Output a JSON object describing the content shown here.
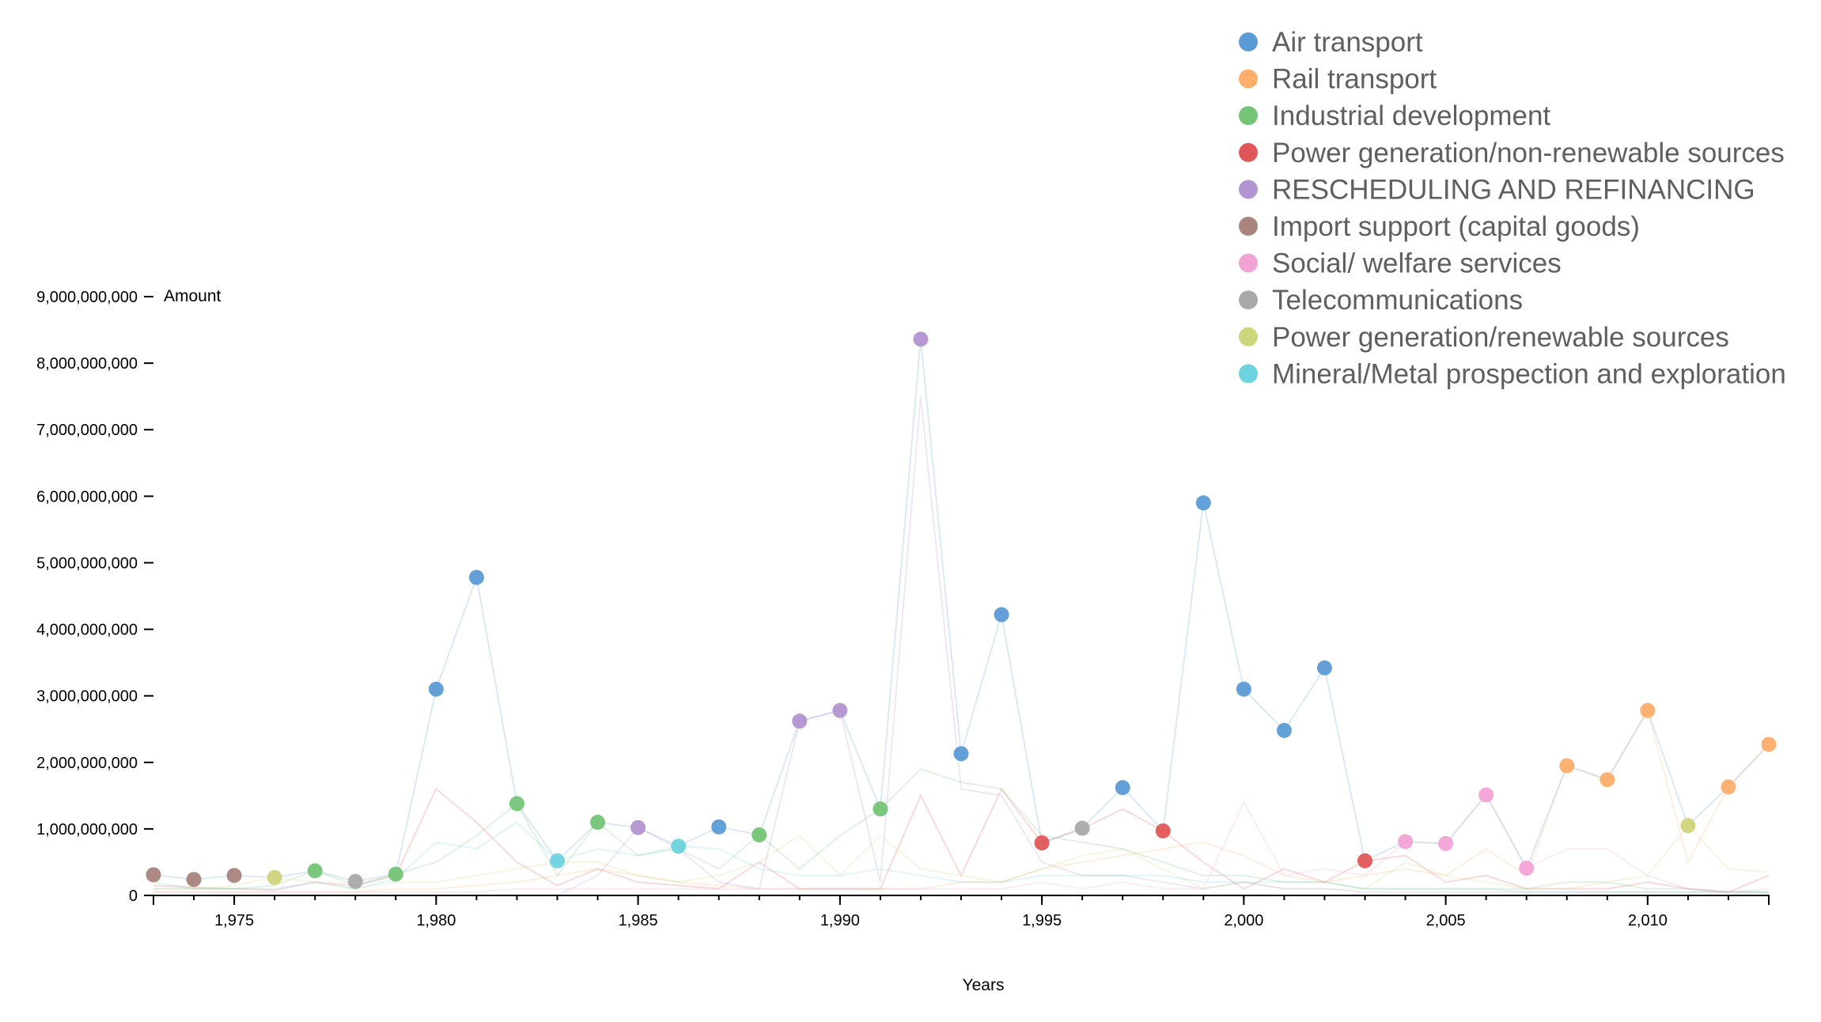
{
  "chart_data": {
    "type": "scatter",
    "xlabel": "Years",
    "ylabel": "Amount",
    "xlim": [
      1973,
      2013
    ],
    "ylim": [
      0,
      9000000000
    ],
    "x_ticks": [
      1975,
      1980,
      1985,
      1990,
      1995,
      2000,
      2005,
      2010
    ],
    "x_tick_labels": [
      "1,975",
      "1,980",
      "1,985",
      "1,990",
      "1,995",
      "2,000",
      "2,005",
      "2,010"
    ],
    "y_ticks": [
      0,
      1000000000,
      2000000000,
      3000000000,
      4000000000,
      5000000000,
      6000000000,
      7000000000,
      8000000000,
      9000000000
    ],
    "y_tick_labels": [
      "0",
      "1,000,000,000",
      "2,000,000,000",
      "3,000,000,000",
      "4,000,000,000",
      "5,000,000,000",
      "6,000,000,000",
      "7,000,000,000",
      "8,000,000,000",
      "9,000,000,000"
    ],
    "legend_position": "top-right",
    "grid": false,
    "series": [
      {
        "name": "Air transport",
        "color": "#5b9bd5"
      },
      {
        "name": "Rail transport",
        "color": "#fdae6b"
      },
      {
        "name": "Industrial development",
        "color": "#74c476"
      },
      {
        "name": "Power generation/non-renewable sources",
        "color": "#e15759"
      },
      {
        "name": "RESCHEDULING AND REFINANCING",
        "color": "#b294d0"
      },
      {
        "name": "Import support (capital goods)",
        "color": "#a9847a"
      },
      {
        "name": "Social/ welfare services",
        "color": "#f2a3d6"
      },
      {
        "name": "Telecommunications",
        "color": "#a9a9a9"
      },
      {
        "name": "Power generation/renewable sources",
        "color": "#cfd57a"
      },
      {
        "name": "Mineral/Metal prospection and exploration",
        "color": "#6dd3de"
      }
    ],
    "top_points": [
      {
        "year": 1973,
        "value": 310000000,
        "series": "Import support (capital goods)"
      },
      {
        "year": 1974,
        "value": 240000000,
        "series": "Import support (capital goods)"
      },
      {
        "year": 1975,
        "value": 300000000,
        "series": "Import support (capital goods)"
      },
      {
        "year": 1976,
        "value": 270000000,
        "series": "Power generation/renewable sources"
      },
      {
        "year": 1977,
        "value": 370000000,
        "series": "Industrial development"
      },
      {
        "year": 1978,
        "value": 210000000,
        "series": "Telecommunications"
      },
      {
        "year": 1979,
        "value": 320000000,
        "series": "Industrial development"
      },
      {
        "year": 1980,
        "value": 3100000000,
        "series": "Air transport"
      },
      {
        "year": 1981,
        "value": 4780000000,
        "series": "Air transport"
      },
      {
        "year": 1982,
        "value": 1380000000,
        "series": "Industrial development"
      },
      {
        "year": 1983,
        "value": 520000000,
        "series": "Mineral/Metal prospection and exploration"
      },
      {
        "year": 1984,
        "value": 1100000000,
        "series": "Industrial development"
      },
      {
        "year": 1985,
        "value": 1020000000,
        "series": "RESCHEDULING AND REFINANCING"
      },
      {
        "year": 1986,
        "value": 740000000,
        "series": "Mineral/Metal prospection and exploration"
      },
      {
        "year": 1987,
        "value": 1030000000,
        "series": "Air transport"
      },
      {
        "year": 1988,
        "value": 910000000,
        "series": "Industrial development"
      },
      {
        "year": 1989,
        "value": 2620000000,
        "series": "RESCHEDULING AND REFINANCING"
      },
      {
        "year": 1990,
        "value": 2780000000,
        "series": "RESCHEDULING AND REFINANCING"
      },
      {
        "year": 1991,
        "value": 1300000000,
        "series": "Industrial development"
      },
      {
        "year": 1992,
        "value": 8360000000,
        "series": "RESCHEDULING AND REFINANCING"
      },
      {
        "year": 1993,
        "value": 2130000000,
        "series": "Air transport"
      },
      {
        "year": 1994,
        "value": 4220000000,
        "series": "Air transport"
      },
      {
        "year": 1995,
        "value": 790000000,
        "series": "Power generation/non-renewable sources"
      },
      {
        "year": 1996,
        "value": 1010000000,
        "series": "Telecommunications"
      },
      {
        "year": 1997,
        "value": 1620000000,
        "series": "Air transport"
      },
      {
        "year": 1998,
        "value": 970000000,
        "series": "Power generation/non-renewable sources"
      },
      {
        "year": 1999,
        "value": 5900000000,
        "series": "Air transport"
      },
      {
        "year": 2000,
        "value": 3100000000,
        "series": "Air transport"
      },
      {
        "year": 2001,
        "value": 2480000000,
        "series": "Air transport"
      },
      {
        "year": 2002,
        "value": 3420000000,
        "series": "Air transport"
      },
      {
        "year": 2003,
        "value": 520000000,
        "series": "Power generation/non-renewable sources"
      },
      {
        "year": 2004,
        "value": 810000000,
        "series": "Social/ welfare services"
      },
      {
        "year": 2005,
        "value": 780000000,
        "series": "Social/ welfare services"
      },
      {
        "year": 2006,
        "value": 1510000000,
        "series": "Social/ welfare services"
      },
      {
        "year": 2007,
        "value": 410000000,
        "series": "Social/ welfare services"
      },
      {
        "year": 2008,
        "value": 1950000000,
        "series": "Rail transport"
      },
      {
        "year": 2009,
        "value": 1740000000,
        "series": "Rail transport"
      },
      {
        "year": 2010,
        "value": 2780000000,
        "series": "Rail transport"
      },
      {
        "year": 2011,
        "value": 1050000000,
        "series": "Power generation/renewable sources"
      },
      {
        "year": 2012,
        "value": 1630000000,
        "series": "Rail transport"
      },
      {
        "year": 2013,
        "value": 2270000000,
        "series": "Rail transport"
      }
    ],
    "background_lines": [
      {
        "series": "Air transport",
        "values": [
          310000000,
          240000000,
          300000000,
          270000000,
          370000000,
          210000000,
          320000000,
          3100000000,
          4780000000,
          1380000000,
          520000000,
          1100000000,
          1020000000,
          740000000,
          1030000000,
          910000000,
          2620000000,
          2780000000,
          1300000000,
          8360000000,
          2130000000,
          4220000000,
          790000000,
          1010000000,
          1620000000,
          970000000,
          5900000000,
          3100000000,
          2480000000,
          3420000000,
          520000000,
          810000000,
          780000000,
          1510000000,
          410000000,
          1950000000,
          1740000000,
          2780000000,
          1050000000,
          1630000000,
          2270000000
        ]
      },
      {
        "series": "Power generation/non-renewable sources",
        "values": [
          150000000,
          120000000,
          100000000,
          80000000,
          200000000,
          150000000,
          300000000,
          1600000000,
          1100000000,
          500000000,
          150000000,
          400000000,
          200000000,
          150000000,
          100000000,
          500000000,
          100000000,
          100000000,
          100000000,
          1500000000,
          300000000,
          1600000000,
          790000000,
          1000000000,
          1300000000,
          970000000,
          500000000,
          100000000,
          400000000,
          200000000,
          520000000,
          600000000,
          200000000,
          300000000,
          100000000,
          100000000,
          100000000,
          200000000,
          100000000,
          50000000,
          300000000
        ]
      },
      {
        "series": "RESCHEDULING AND REFINANCING",
        "values": [
          0,
          0,
          0,
          0,
          0,
          0,
          0,
          0,
          0,
          0,
          0,
          300000000,
          1020000000,
          700000000,
          200000000,
          100000000,
          2620000000,
          2780000000,
          200000000,
          7500000000,
          1600000000,
          1500000000,
          500000000,
          300000000,
          300000000,
          200000000,
          100000000,
          200000000,
          100000000,
          100000000,
          50000000,
          50000000,
          50000000,
          50000000,
          50000000,
          50000000,
          50000000,
          50000000,
          50000000,
          50000000,
          50000000
        ]
      },
      {
        "series": "Mineral/Metal prospection and exploration",
        "values": [
          200000000,
          100000000,
          100000000,
          100000000,
          200000000,
          100000000,
          250000000,
          800000000,
          700000000,
          1100000000,
          520000000,
          700000000,
          600000000,
          740000000,
          700000000,
          400000000,
          300000000,
          300000000,
          400000000,
          300000000,
          200000000,
          200000000,
          300000000,
          300000000,
          300000000,
          300000000,
          200000000,
          200000000,
          200000000,
          200000000,
          100000000,
          100000000,
          100000000,
          100000000,
          50000000,
          50000000,
          50000000,
          50000000,
          50000000,
          50000000,
          50000000
        ]
      },
      {
        "series": "Industrial development",
        "values": [
          100000000,
          100000000,
          100000000,
          150000000,
          370000000,
          150000000,
          320000000,
          500000000,
          900000000,
          1380000000,
          300000000,
          1100000000,
          600000000,
          700000000,
          400000000,
          910000000,
          400000000,
          900000000,
          1300000000,
          1900000000,
          1700000000,
          1600000000,
          900000000,
          800000000,
          700000000,
          500000000,
          300000000,
          300000000,
          200000000,
          200000000,
          100000000,
          100000000,
          100000000,
          100000000,
          100000000,
          200000000,
          200000000,
          100000000,
          100000000,
          50000000,
          50000000
        ]
      },
      {
        "series": "Rail transport",
        "values": [
          50000000,
          50000000,
          50000000,
          50000000,
          50000000,
          50000000,
          100000000,
          100000000,
          150000000,
          200000000,
          300000000,
          400000000,
          300000000,
          200000000,
          150000000,
          100000000,
          100000000,
          100000000,
          100000000,
          100000000,
          200000000,
          200000000,
          400000000,
          500000000,
          600000000,
          700000000,
          800000000,
          600000000,
          300000000,
          200000000,
          300000000,
          400000000,
          300000000,
          700000000,
          300000000,
          1950000000,
          1740000000,
          2780000000,
          500000000,
          1630000000,
          2270000000
        ]
      },
      {
        "series": "Power generation/renewable sources",
        "values": [
          100000000,
          100000000,
          150000000,
          270000000,
          200000000,
          100000000,
          200000000,
          200000000,
          300000000,
          400000000,
          500000000,
          500000000,
          300000000,
          200000000,
          300000000,
          500000000,
          900000000,
          300000000,
          900000000,
          400000000,
          300000000,
          200000000,
          400000000,
          600000000,
          700000000,
          400000000,
          100000000,
          200000000,
          100000000,
          100000000,
          100000000,
          500000000,
          300000000,
          200000000,
          100000000,
          100000000,
          200000000,
          300000000,
          1050000000,
          400000000,
          350000000
        ]
      },
      {
        "series": "Social/ welfare services",
        "values": [
          50000000,
          50000000,
          50000000,
          50000000,
          50000000,
          50000000,
          50000000,
          50000000,
          50000000,
          100000000,
          100000000,
          100000000,
          100000000,
          100000000,
          100000000,
          100000000,
          100000000,
          100000000,
          100000000,
          100000000,
          100000000,
          100000000,
          200000000,
          100000000,
          200000000,
          100000000,
          100000000,
          1400000000,
          300000000,
          400000000,
          300000000,
          810000000,
          780000000,
          1510000000,
          410000000,
          700000000,
          700000000,
          300000000,
          100000000,
          50000000,
          100000000
        ]
      }
    ]
  }
}
